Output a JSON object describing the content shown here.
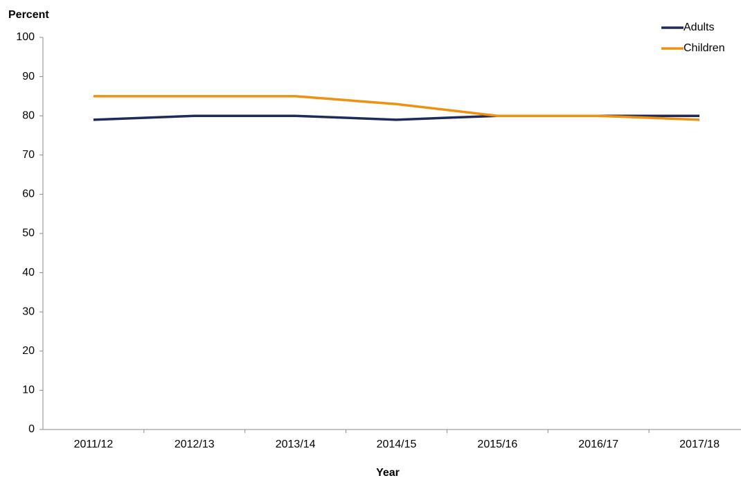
{
  "chart_data": {
    "type": "line",
    "y_label": "Percent",
    "x_label": "Year",
    "categories": [
      "2011/12",
      "2012/13",
      "2013/14",
      "2014/15",
      "2015/16",
      "2016/17",
      "2017/18"
    ],
    "series": [
      {
        "name": "Adults",
        "color": "#1f2a57",
        "values": [
          79,
          80,
          80,
          79,
          80,
          80,
          80
        ]
      },
      {
        "name": "Children",
        "color": "#f0900f",
        "values": [
          85,
          85,
          85,
          83,
          80,
          80,
          79
        ]
      }
    ],
    "ylim": [
      0,
      100
    ],
    "yticks": [
      0,
      10,
      20,
      30,
      40,
      50,
      60,
      70,
      80,
      90,
      100
    ],
    "grid": false,
    "legend": "top-right"
  }
}
